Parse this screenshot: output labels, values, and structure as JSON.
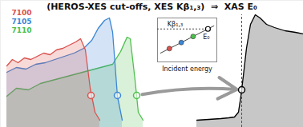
{
  "chart_data": [
    {
      "type": "area",
      "title": "(HEROS-XES cut-offs, XES Kβ₁,₃)  ⇒  XAS E₀",
      "xlim": [
        0,
        378
      ],
      "ylim": [
        0,
        159
      ],
      "tick_labels": false,
      "grid": false,
      "series": [
        {
          "name": "7100",
          "color": "#d9534f",
          "marker": "circle",
          "x": [
            8,
            15,
            22,
            30,
            38,
            46,
            54,
            62,
            70,
            78,
            86,
            94,
            100,
            106,
            112,
            118,
            124
          ],
          "values": [
            77,
            85,
            81,
            87,
            85,
            89,
            93,
            91,
            97,
            99,
            103,
            107,
            111,
            97,
            49,
            19,
            9
          ],
          "cutoff": [
            113,
            40
          ]
        },
        {
          "name": "7105",
          "color": "#3b86d6",
          "marker": "circle",
          "x": [
            8,
            20,
            32,
            44,
            56,
            68,
            80,
            92,
            104,
            114,
            122,
            130,
            136,
            140,
            146,
            152
          ],
          "values": [
            69,
            75,
            73,
            79,
            81,
            85,
            89,
            93,
            99,
            109,
            124,
            134,
            137,
            119,
            39,
            9
          ],
          "cutoff": [
            146,
            40
          ]
        },
        {
          "name": "7110",
          "color": "#4cc04c",
          "marker": "circle",
          "x": [
            8,
            20,
            35,
            50,
            65,
            80,
            95,
            110,
            125,
            140,
            150,
            158,
            162,
            168,
            172,
            178
          ],
          "values": [
            39,
            49,
            47,
            55,
            59,
            63,
            67,
            71,
            75,
            79,
            95,
            113,
            111,
            59,
            19,
            9
          ],
          "cutoff": [
            170,
            40
          ]
        },
        {
          "color": "#000000",
          "marker": "circle",
          "x": [
            245,
            260,
            275,
            285,
            292,
            297,
            300,
            303,
            307,
            312,
            318,
            324,
            332,
            342,
            355,
            368,
            378
          ],
          "values": [
            9,
            10,
            11,
            12,
            13,
            19,
            39,
            64,
            99,
            129,
            141,
            137,
            129,
            125,
            121,
            119,
            117
          ],
          "edge": [
            301,
            47
          ]
        }
      ]
    },
    {
      "type": "line",
      "y_label": "Kβ₁,₃",
      "x_label": "Incident energy",
      "annotation": "E₀",
      "xlim": [
        0,
        10
      ],
      "ylim": [
        0,
        10
      ],
      "tick_labels": false,
      "grid": false,
      "series": [
        {
          "x": [
            2,
            4,
            6
          ],
          "values": [
            3.03,
            4.41,
            5.79
          ],
          "colors": [
            "#d9534f",
            "#3b86d6",
            "#4cc04c"
          ],
          "marker": "circle"
        }
      ],
      "fit": {
        "x": [
          0.5,
          9.5
        ],
        "values": [
          2,
          8.2
        ]
      },
      "level": 7.5,
      "e0": [
        8.5,
        7.5
      ]
    }
  ]
}
